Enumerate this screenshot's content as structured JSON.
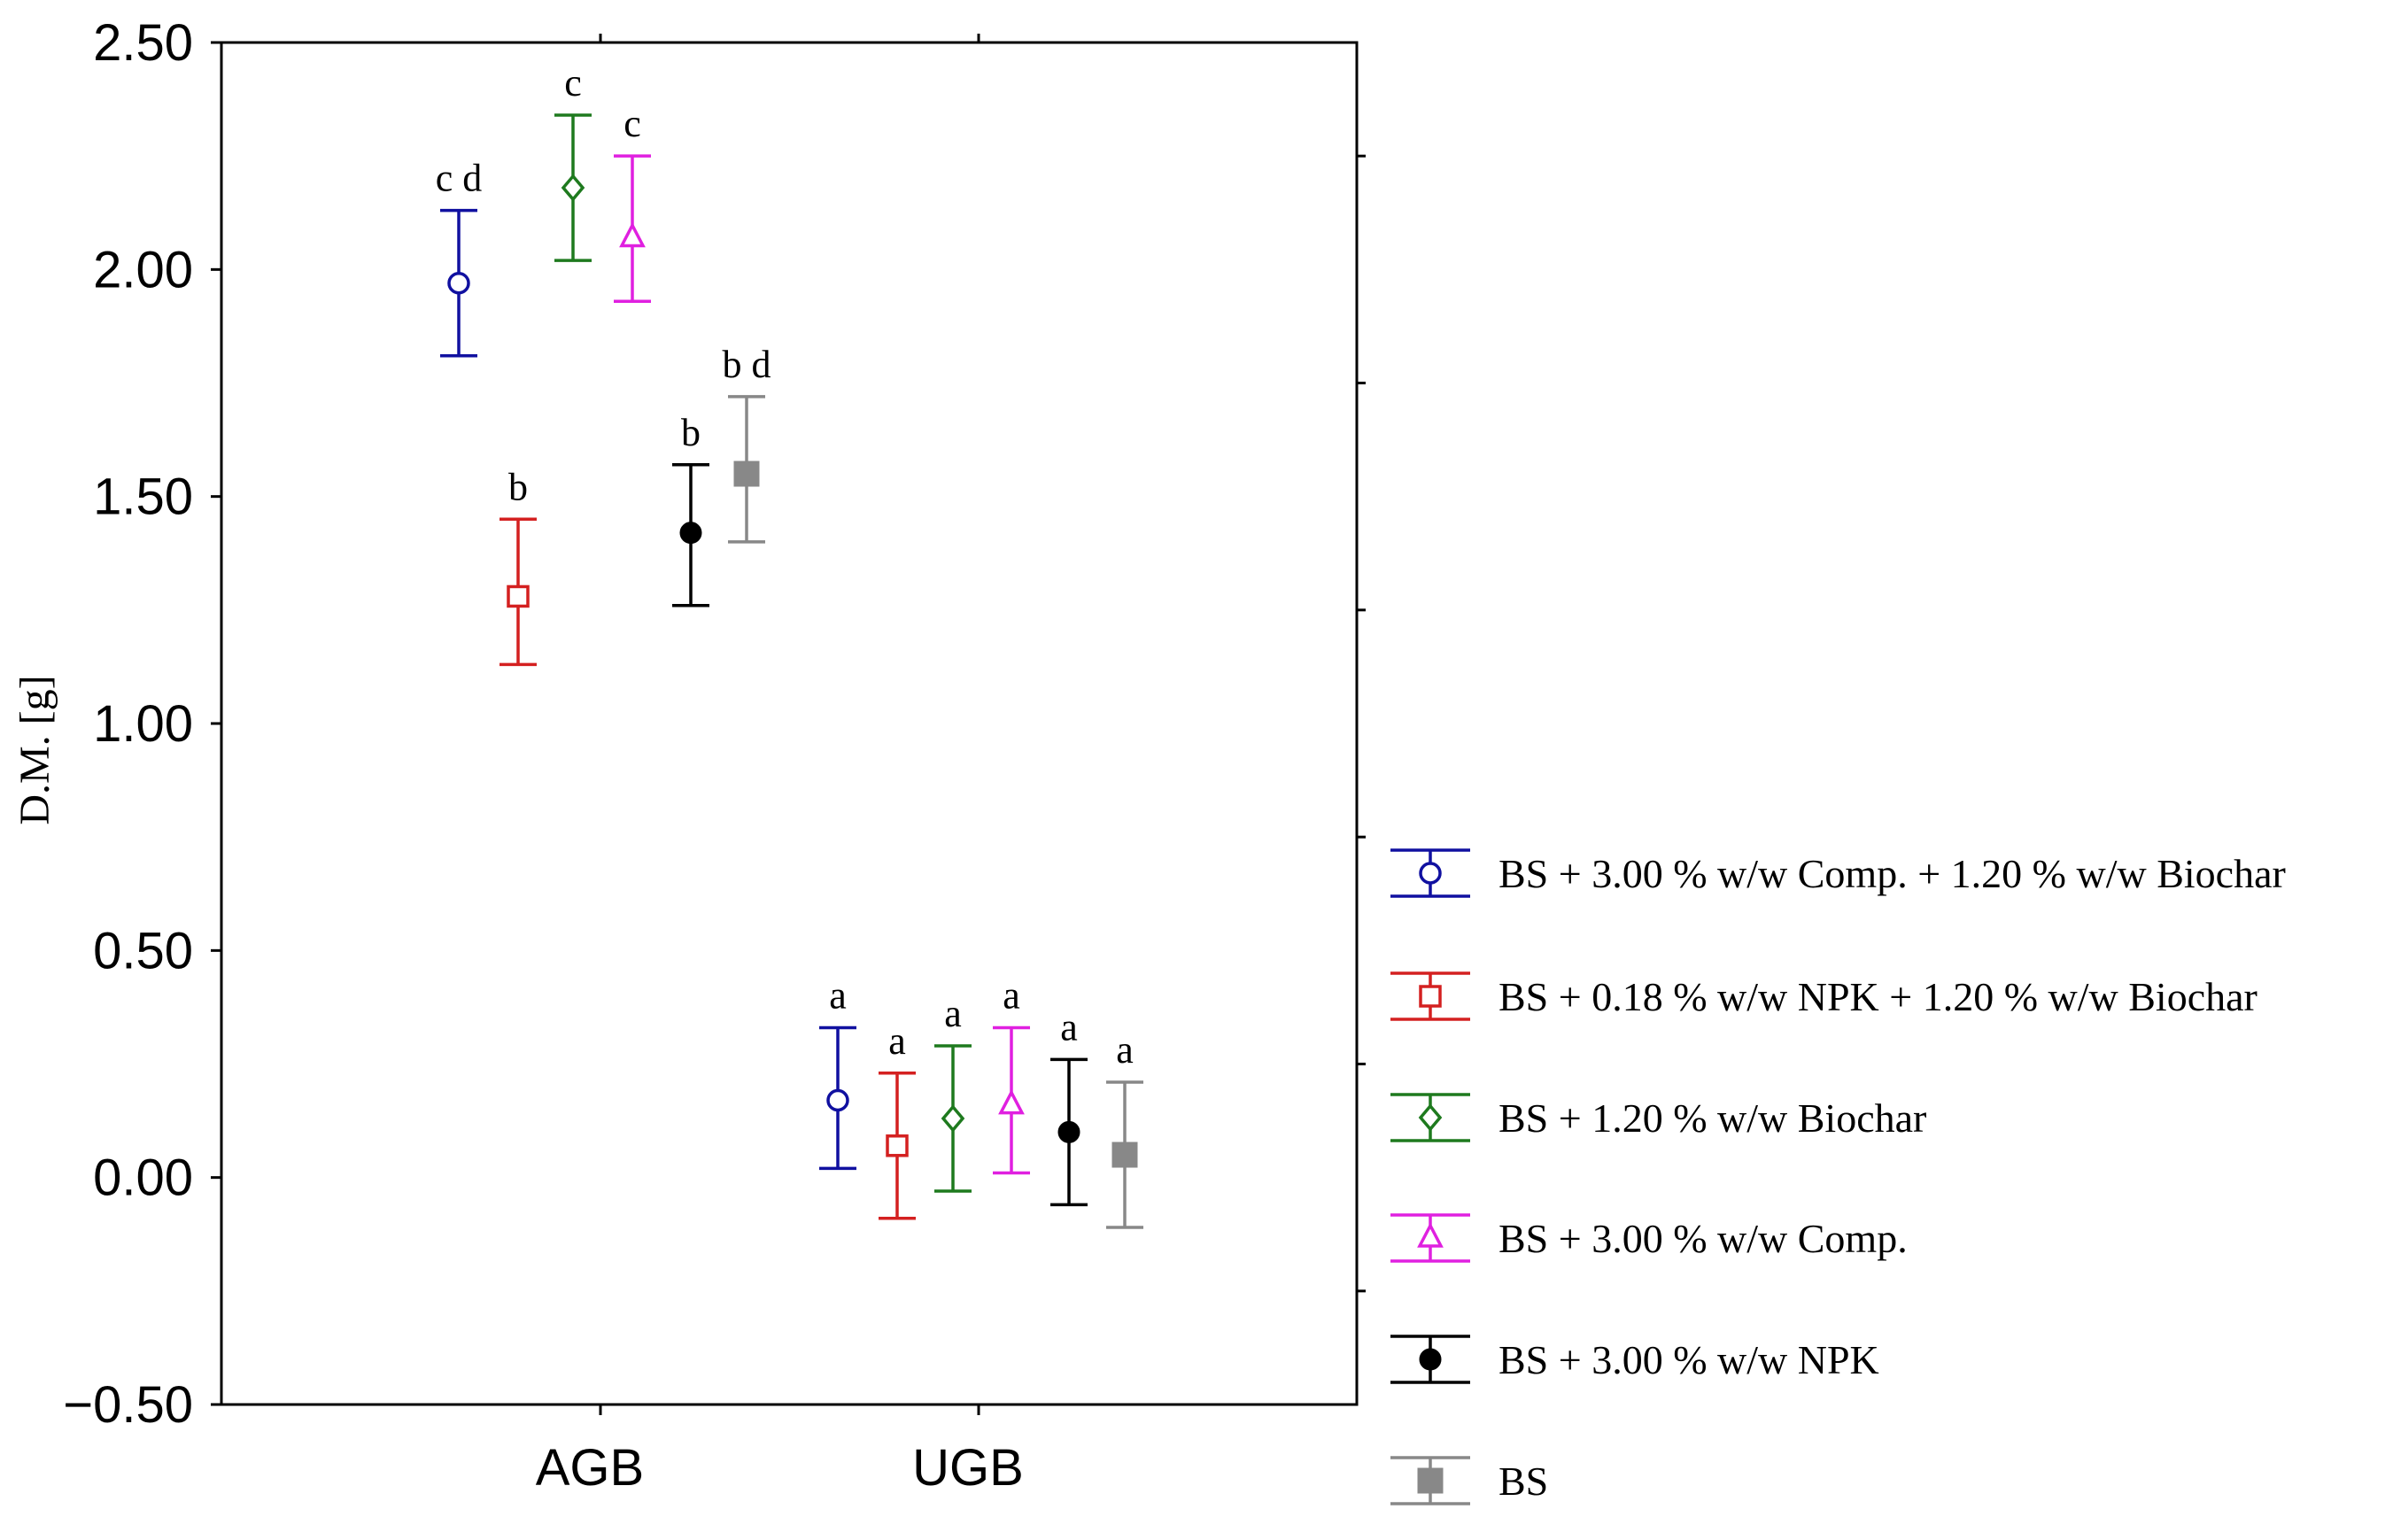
{
  "chart_data": {
    "type": "scatter",
    "subtype": "means with error bars",
    "ylabel": "D.M. [g]",
    "xlabel": "",
    "ylim": [
      -0.5,
      2.5
    ],
    "y_ticks": [
      -0.5,
      0.0,
      0.5,
      1.0,
      1.5,
      2.0,
      2.5
    ],
    "y_tick_labels": [
      "−0.50",
      "0.00",
      "0.50",
      "1.00",
      "1.50",
      "2.00",
      "2.50"
    ],
    "categories": [
      "AGB",
      "UGB"
    ],
    "legend_position": "right",
    "series": [
      {
        "name": "BS + 3.00 % w/w Comp. + 1.20 % w/w Biochar",
        "color": "#1010a0",
        "marker": "open-circle",
        "values": [
          1.97,
          0.17
        ],
        "lower": [
          1.81,
          0.02
        ],
        "upper": [
          2.13,
          0.33
        ],
        "letters": [
          "c d",
          "a"
        ]
      },
      {
        "name": "BS + 0.18 % w/w NPK + 1.20 % w/w Biochar",
        "color": "#d42020",
        "marker": "open-square",
        "values": [
          1.28,
          0.07
        ],
        "lower": [
          1.13,
          -0.09
        ],
        "upper": [
          1.45,
          0.23
        ],
        "letters": [
          "b",
          "a"
        ]
      },
      {
        "name": "BS + 1.20 % w/w Biochar",
        "color": "#1e7a1e",
        "marker": "open-diamond",
        "values": [
          2.18,
          0.13
        ],
        "lower": [
          2.02,
          -0.03
        ],
        "upper": [
          2.34,
          0.29
        ],
        "letters": [
          "c",
          "a"
        ]
      },
      {
        "name": "BS + 3.00 % w/w Comp.",
        "color": "#e020e0",
        "marker": "open-triangle",
        "values": [
          2.07,
          0.16
        ],
        "lower": [
          1.93,
          0.01
        ],
        "upper": [
          2.25,
          0.33
        ],
        "letters": [
          "c",
          "a"
        ]
      },
      {
        "name": "BS + 3.00 % w/w NPK",
        "color": "#000000",
        "marker": "filled-circle",
        "values": [
          1.42,
          0.1
        ],
        "lower": [
          1.26,
          -0.06
        ],
        "upper": [
          1.57,
          0.26
        ],
        "letters": [
          "b",
          "a"
        ]
      },
      {
        "name": "BS",
        "color": "#888888",
        "marker": "filled-square",
        "values": [
          1.55,
          0.05
        ],
        "lower": [
          1.4,
          -0.11
        ],
        "upper": [
          1.72,
          0.21
        ],
        "letters": [
          "b d",
          "a"
        ]
      }
    ]
  }
}
